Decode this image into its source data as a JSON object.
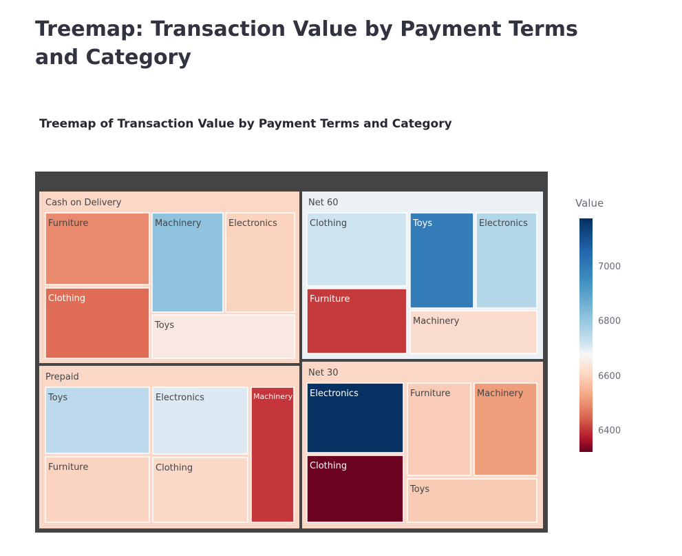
{
  "page": {
    "title": "Treemap: Transaction Value by Payment Terms and Category"
  },
  "colorbar": {
    "title": "Value",
    "ticks": [
      "7000",
      "6800",
      "6600",
      "6400"
    ]
  },
  "chart_data": {
    "type": "treemap",
    "title": "Treemap of Transaction Value by Payment Terms and Category",
    "color_scale": "RdBu",
    "color_range": [
      6330,
      7180
    ],
    "colorbar_title": "Value",
    "colorbar_ticks": [
      6400,
      6600,
      6800,
      7000
    ],
    "groups": [
      {
        "name": "Cash on Delivery",
        "color": "#fad7c6",
        "items": [
          {
            "name": "Furniture",
            "color": "#e98a6e"
          },
          {
            "name": "Machinery",
            "color": "#8fc3dd"
          },
          {
            "name": "Electronics",
            "color": "#fbd4c0"
          },
          {
            "name": "Clothing",
            "color": "#df6c55"
          },
          {
            "name": "Toys",
            "color": "#f9e8e1"
          }
        ]
      },
      {
        "name": "Net 60",
        "color": "#ebf1f5",
        "items": [
          {
            "name": "Clothing",
            "color": "#cde3ef"
          },
          {
            "name": "Toys",
            "color": "#347cb8"
          },
          {
            "name": "Electronics",
            "color": "#b3d6e9"
          },
          {
            "name": "Furniture",
            "color": "#c43a3a"
          },
          {
            "name": "Machinery",
            "color": "#f9dccd"
          }
        ]
      },
      {
        "name": "Prepaid",
        "color": "#fad7c6",
        "items": [
          {
            "name": "Toys",
            "color": "#bcdaeb"
          },
          {
            "name": "Electronics",
            "color": "#dce9f2"
          },
          {
            "name": "Machinery",
            "color": "#c4363a"
          },
          {
            "name": "Furniture",
            "color": "#fad4c0"
          },
          {
            "name": "Clothing",
            "color": "#fad9c8"
          }
        ]
      },
      {
        "name": "Net 30",
        "color": "#fad7c6",
        "items": [
          {
            "name": "Electronics",
            "color": "#073162"
          },
          {
            "name": "Furniture",
            "color": "#f8ccb6"
          },
          {
            "name": "Machinery",
            "color": "#ef9e7b"
          },
          {
            "name": "Clothing",
            "color": "#6a0220"
          },
          {
            "name": "Toys",
            "color": "#f8cbb4"
          }
        ]
      }
    ]
  }
}
